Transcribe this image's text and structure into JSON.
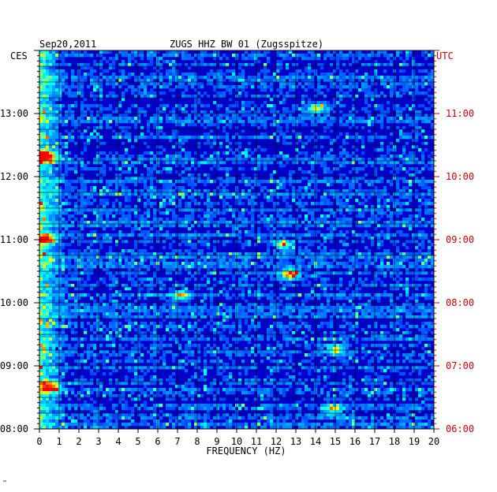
{
  "header": {
    "date": "Sep20,2011",
    "station": "ZUGS HHZ BW 01 (Zugsspitze)",
    "left_zone": "CES",
    "right_zone": "UTC"
  },
  "footer_mark": "ᴹ",
  "chart_data": {
    "type": "heatmap",
    "title": "ZUGS HHZ BW 01 (Zugsspitze)",
    "subtitle": "Sep20,2011",
    "xlabel": "FREQUENCY (HZ)",
    "x_ticks": [
      "0",
      "1",
      "2",
      "3",
      "4",
      "5",
      "6",
      "7",
      "8",
      "9",
      "10",
      "11",
      "12",
      "13",
      "14",
      "15",
      "16",
      "17",
      "18",
      "19",
      "20"
    ],
    "xlim": [
      0,
      20
    ],
    "y_left_label": "CES",
    "y_left_ticks": [
      "08:00",
      "09:00",
      "10:00",
      "11:00",
      "12:00",
      "13:00"
    ],
    "y_right_label": "UTC",
    "y_right_ticks": [
      "06:00",
      "07:00",
      "08:00",
      "09:00",
      "10:00",
      "11:00"
    ],
    "time_range_local": [
      "08:00",
      "13:45"
    ],
    "colormap": [
      "#00008b",
      "#0000ff",
      "#0080ff",
      "#00ffff",
      "#ffff00",
      "#ff0000"
    ],
    "hot_spots": [
      {
        "freq_hz": 0.4,
        "time": "12:20",
        "level": 0.95
      },
      {
        "freq_hz": 0.5,
        "time": "08:40",
        "level": 0.9
      },
      {
        "freq_hz": 0.3,
        "time": "11:00",
        "level": 0.8
      },
      {
        "freq_hz": 12.7,
        "time": "10:27",
        "level": 0.95
      },
      {
        "freq_hz": 7.2,
        "time": "10:07",
        "level": 0.8
      },
      {
        "freq_hz": 14.1,
        "time": "13:05",
        "level": 0.7
      },
      {
        "freq_hz": 14.9,
        "time": "08:18",
        "level": 0.7
      },
      {
        "freq_hz": 15.0,
        "time": "09:15",
        "level": 0.7
      },
      {
        "freq_hz": 12.4,
        "time": "10:55",
        "level": 0.7
      }
    ],
    "grid": true,
    "legend": "none"
  },
  "colors": {
    "background": "#ffffff",
    "plot_border": "#000000",
    "grid": "#000000",
    "utc_text": "#cc0000"
  }
}
